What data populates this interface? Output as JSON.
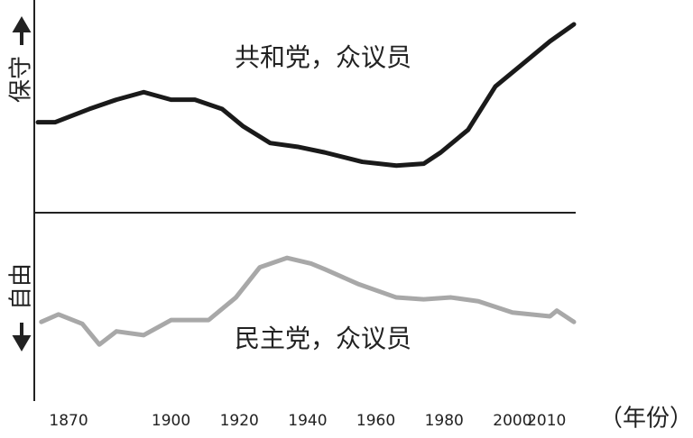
{
  "chart_data": {
    "type": "line",
    "x_label": "（年份）",
    "y_label_top": "保守",
    "y_label_bottom": "自由",
    "xlim": [
      1861,
      2018
    ],
    "xticks": [
      1870,
      1900,
      1920,
      1940,
      1960,
      1980,
      2000,
      2010
    ],
    "ylim": [
      -1,
      1
    ],
    "series": [
      {
        "name": "共和党，众议员",
        "color": "#1a1a1a",
        "x": [
          1861,
          1866,
          1876,
          1884,
          1892,
          1900,
          1907,
          1915,
          1921,
          1929,
          1937,
          1945,
          1956,
          1966,
          1974,
          1979,
          1987,
          1995,
          2003,
          2011,
          2018
        ],
        "values": [
          0.48,
          0.48,
          0.55,
          0.6,
          0.64,
          0.6,
          0.6,
          0.55,
          0.46,
          0.37,
          0.35,
          0.32,
          0.27,
          0.25,
          0.26,
          0.32,
          0.44,
          0.67,
          0.79,
          0.91,
          1.0
        ]
      },
      {
        "name": "民主党，众议员",
        "color": "#a8a8a8",
        "x": [
          1862,
          1867,
          1874,
          1879,
          1884,
          1892,
          1900,
          1911,
          1919,
          1926,
          1934,
          1941,
          1945,
          1955,
          1966,
          1974,
          1982,
          1990,
          2000,
          2011,
          2013,
          2018
        ],
        "values": [
          -0.58,
          -0.54,
          -0.59,
          -0.7,
          -0.63,
          -0.65,
          -0.57,
          -0.57,
          -0.45,
          -0.29,
          -0.24,
          -0.27,
          -0.3,
          -0.38,
          -0.45,
          -0.46,
          -0.45,
          -0.47,
          -0.53,
          -0.55,
          -0.52,
          -0.58
        ]
      }
    ]
  }
}
